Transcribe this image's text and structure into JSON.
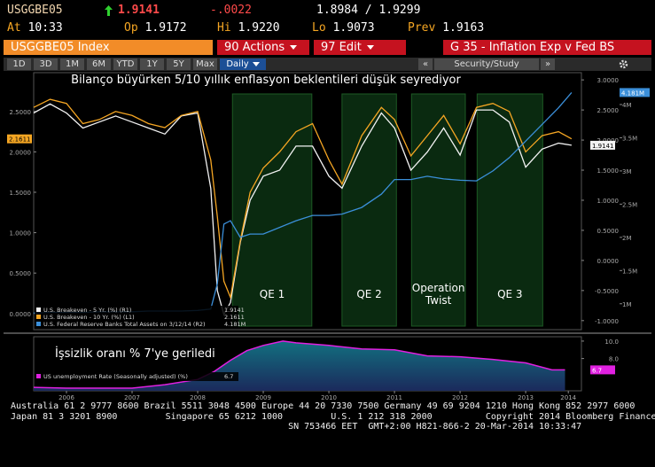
{
  "header": {
    "ticker": "USGGBE05",
    "last": "1.9141",
    "change": "-.0022",
    "bid_ask": "1.8984 / 1.9299",
    "quotes": [
      {
        "label": "At",
        "value": "10:33"
      },
      {
        "label": "Op",
        "value": "1.9172"
      },
      {
        "label": "Hi",
        "value": "1.9220"
      },
      {
        "label": "Lo",
        "value": "1.9073"
      },
      {
        "label": "Prev",
        "value": "1.9163"
      }
    ]
  },
  "toolbar": {
    "security": "USGGBE05 Index",
    "actions": "90 Actions",
    "edit": "97 Edit",
    "page_title": "G 35 - Inflation Exp v Fed BS",
    "periods": [
      "1D",
      "3D",
      "1M",
      "6M",
      "YTD",
      "1Y",
      "5Y",
      "Max"
    ],
    "frequency": "Daily",
    "prev": "«",
    "study": "Security/Study",
    "next": "»"
  },
  "chart_data": [
    {
      "type": "line",
      "title": "Bilanço büyürken 5/10 yıllık enflasyon beklentileri düşük seyrediyor",
      "xlim": [
        2006.0,
        2014.35
      ],
      "x": [
        2006.0,
        2006.25,
        2006.5,
        2006.75,
        2007.0,
        2007.25,
        2007.5,
        2007.75,
        2008.0,
        2008.25,
        2008.5,
        2008.7,
        2008.8,
        2008.9,
        2009.0,
        2009.15,
        2009.3,
        2009.5,
        2009.75,
        2010.0,
        2010.25,
        2010.5,
        2010.7,
        2011.0,
        2011.3,
        2011.5,
        2011.75,
        2012.0,
        2012.25,
        2012.5,
        2012.75,
        2013.0,
        2013.25,
        2013.5,
        2013.75,
        2014.0,
        2014.2
      ],
      "ylim": [
        -0.2,
        2.98
      ],
      "yticks": [
        {
          "value": 0,
          "label": "0.0000"
        },
        {
          "value": 0.5,
          "label": "0.5000"
        },
        {
          "value": 1,
          "label": "1.0000"
        },
        {
          "value": 1.5,
          "label": "1.5000"
        },
        {
          "value": 2,
          "label": "2.0000"
        },
        {
          "value": 2.5,
          "label": "2.5000"
        }
      ],
      "y2lim": [
        -1.15,
        3.12
      ],
      "y2ticks": [
        {
          "value": -1,
          "label": "-1.0000"
        },
        {
          "value": -0.5,
          "label": "-0.5000"
        },
        {
          "value": 0,
          "label": "0.0000"
        },
        {
          "value": 0.5,
          "label": "0.5000"
        },
        {
          "value": 1,
          "label": "1.0000"
        },
        {
          "value": 1.5,
          "label": "1.5000"
        },
        {
          "value": 2,
          "label": "2.0000"
        },
        {
          "value": 2.5,
          "label": "2.5000"
        },
        {
          "value": 3,
          "label": "3.0000"
        }
      ],
      "y3lim": [
        0.61,
        4.48
      ],
      "y3ticks": [
        {
          "value": 1,
          "label": "1M"
        },
        {
          "value": 1.5,
          "label": "1.5M"
        },
        {
          "value": 2,
          "label": "2M"
        },
        {
          "value": 2.5,
          "label": "2.5M"
        },
        {
          "value": 3,
          "label": "3M"
        },
        {
          "value": 3.5,
          "label": "3.5M"
        },
        {
          "value": 4,
          "label": "4M"
        }
      ],
      "bands": [
        {
          "label": "QE 1",
          "start": 2009.03,
          "end": 2010.24
        },
        {
          "label": "QE 2",
          "start": 2010.7,
          "end": 2011.53
        },
        {
          "label": "Operation Twist",
          "start": 2011.76,
          "end": 2012.58
        },
        {
          "label": "QE 3",
          "start": 2012.76,
          "end": 2013.76
        }
      ],
      "band_color": "#0a2a10",
      "series": [
        {
          "name": "U.S. Breakeven - 5 Yr. (%) (R1)",
          "color": "#f2f2f2",
          "axis": "y2",
          "last": 1.9141,
          "values": [
            2.45,
            2.6,
            2.45,
            2.2,
            2.3,
            2.4,
            2.3,
            2.2,
            2.1,
            2.4,
            2.45,
            1.2,
            -0.5,
            -0.9,
            -0.7,
            0.3,
            1.0,
            1.4,
            1.5,
            1.9,
            1.9,
            1.4,
            1.2,
            1.9,
            2.45,
            2.2,
            1.5,
            1.8,
            2.2,
            1.75,
            2.5,
            2.5,
            2.3,
            1.55,
            1.85,
            1.95,
            1.9141
          ]
        },
        {
          "name": "U.S. Breakeven - 10 Yr. (%) (L1)",
          "color": "#f5a623",
          "axis": "y",
          "last": 2.1611,
          "values": [
            2.55,
            2.65,
            2.6,
            2.35,
            2.4,
            2.5,
            2.45,
            2.35,
            2.3,
            2.45,
            2.5,
            1.9,
            1.2,
            0.4,
            0.2,
            0.9,
            1.5,
            1.8,
            2.0,
            2.25,
            2.35,
            1.9,
            1.6,
            2.2,
            2.55,
            2.4,
            1.95,
            2.2,
            2.45,
            2.1,
            2.55,
            2.6,
            2.5,
            2.0,
            2.2,
            2.25,
            2.1611
          ]
        },
        {
          "name": "U.S. Federal Reserve Banks Total Assets on 3/12/14 (R2)",
          "color": "#3b8fd9",
          "axis": "y3",
          "last": {
            "value": 4.181,
            "label": "4.181M"
          },
          "values": [
            0.86,
            0.87,
            0.87,
            0.87,
            0.88,
            0.88,
            0.88,
            0.89,
            0.89,
            0.89,
            0.9,
            0.92,
            1.3,
            2.2,
            2.25,
            2.0,
            2.05,
            2.05,
            2.15,
            2.25,
            2.33,
            2.33,
            2.35,
            2.45,
            2.65,
            2.87,
            2.87,
            2.92,
            2.88,
            2.86,
            2.85,
            3.0,
            3.2,
            3.45,
            3.7,
            3.95,
            4.181
          ]
        }
      ]
    },
    {
      "type": "area",
      "title": "İşsizlik oranı % 7'ye geriledi",
      "xlim": [
        2006.0,
        2014.35
      ],
      "xticks": [
        {
          "value": 2006.5,
          "label": "2006"
        },
        {
          "value": 2007.5,
          "label": "2007"
        },
        {
          "value": 2008.5,
          "label": "2008"
        },
        {
          "value": 2009.5,
          "label": "2009"
        },
        {
          "value": 2010.5,
          "label": "2010"
        },
        {
          "value": 2011.5,
          "label": "2011"
        },
        {
          "value": 2012.5,
          "label": "2012"
        },
        {
          "value": 2013.5,
          "label": "2013"
        },
        {
          "value": 2014.15,
          "label": "2014"
        }
      ],
      "x": [
        2006.0,
        2006.5,
        2007.0,
        2007.5,
        2008.0,
        2008.5,
        2008.75,
        2009.0,
        2009.25,
        2009.5,
        2009.8,
        2010.0,
        2010.5,
        2011.0,
        2011.5,
        2012.0,
        2012.5,
        2013.0,
        2013.5,
        2013.9,
        2014.1
      ],
      "ylim": [
        4.3,
        10.5
      ],
      "yticks": [
        {
          "value": 8,
          "label": "8.0"
        },
        {
          "value": 10,
          "label": "10.0"
        }
      ],
      "series": [
        {
          "name": "US unemployment Rate (Seasonally adjusted) (%)",
          "color": "#e020e0",
          "axis": "y",
          "last": 6.7,
          "values": [
            4.7,
            4.6,
            4.6,
            4.6,
            5.0,
            5.6,
            6.5,
            7.8,
            8.9,
            9.5,
            10.0,
            9.8,
            9.5,
            9.1,
            9.0,
            8.3,
            8.2,
            7.9,
            7.5,
            6.7,
            6.7
          ]
        }
      ]
    }
  ],
  "footer": [
    "Australia 61 2 9777 8600 Brazil 5511 3048 4500 Europe 44 20 7330 7500 Germany 49 69 9204 1210 Hong Kong 852 2977 6000",
    "Japan 81 3 3201 8900         Singapore 65 6212 1000         U.S. 1 212 318 2000          Copyright 2014 Bloomberg Finance L.P.",
    "                                                    SN 753466 EET  GMT+2:00 H821-866-2 20-Mar-2014 10:33:47"
  ]
}
